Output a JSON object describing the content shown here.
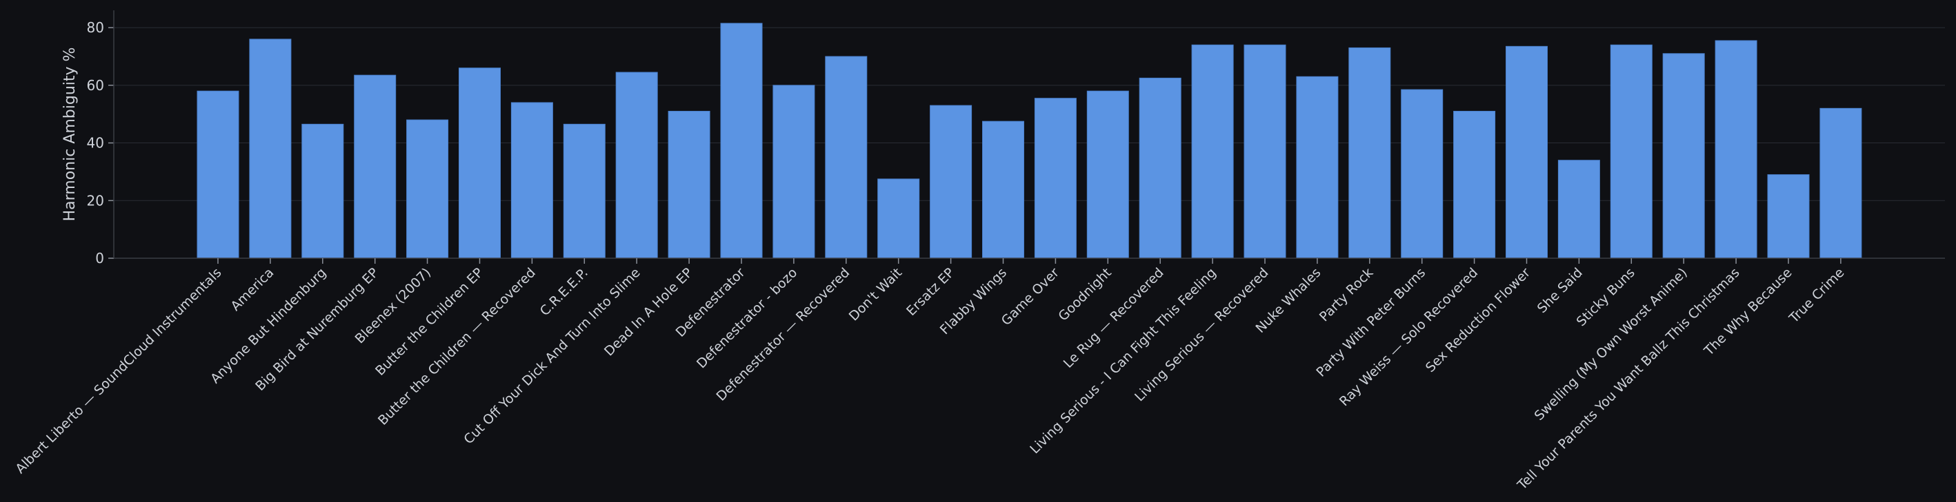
{
  "chart_data": {
    "type": "bar",
    "title": "",
    "xlabel": "",
    "ylabel": "Harmonic Ambiguity %",
    "ylim": [
      0,
      86
    ],
    "yticks": [
      0,
      20,
      40,
      60,
      80
    ],
    "grid": true,
    "legend": "none",
    "categories": [
      "Albert Liberto — SoundCloud Instrumentals",
      "America",
      "Anyone But Hindenburg",
      "Big Bird at Nuremburg EP",
      "Bleenex (2007)",
      "Butter the Children EP",
      "Butter the Children — Recovered",
      "C.R.E.E.P.",
      "Cut Off Your Dick And Turn Into Slime",
      "Dead In A Hole EP",
      "Defenestrator",
      "Defenestrator - bozo",
      "Defenestrator — Recovered",
      "Don't Wait",
      "Ersatz EP",
      "Flabby Wings",
      "Game Over",
      "Goodnight",
      "Le Rug — Recovered",
      "Living Serious - I Can Fight This Feeling",
      "Living Serious — Recovered",
      "Nuke Whales",
      "Party Rock",
      "Party With Peter Burns",
      "Ray Weiss — Solo Recovered",
      "Sex Reduction Flower",
      "She Said",
      "Sticky Buns",
      "Swelling (My Own Worst Anime)",
      "Tell Your Parents You Want Ballz This Christmas",
      "The Why Because",
      "True Crime"
    ],
    "values": [
      58,
      76,
      46.5,
      63.5,
      48,
      66,
      54,
      46.5,
      64.5,
      51,
      81.5,
      60,
      70,
      27.5,
      53,
      47.5,
      55.5,
      58,
      62.5,
      74,
      74,
      63,
      73,
      58.5,
      51,
      73.5,
      34,
      74,
      71,
      75.5,
      29,
      52
    ]
  },
  "colors": {
    "background": "#0f1014",
    "bar": "#5b94e3",
    "bar_edge": "#4a80cc",
    "text": "#cfd3da",
    "grid": "#2a2d34"
  }
}
